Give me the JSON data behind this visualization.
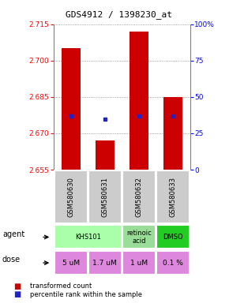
{
  "title": "GDS4912 / 1398230_at",
  "samples": [
    "GSM580630",
    "GSM580631",
    "GSM580632",
    "GSM580633"
  ],
  "bar_values": [
    2.705,
    2.667,
    2.712,
    2.685
  ],
  "bar_base": 2.655,
  "percentile_values": [
    37,
    35,
    37,
    37
  ],
  "ylim": [
    2.655,
    2.715
  ],
  "yticks": [
    2.655,
    2.67,
    2.685,
    2.7,
    2.715
  ],
  "y2ticks": [
    0,
    25,
    50,
    75,
    100
  ],
  "y2ticklabels": [
    "0",
    "25",
    "50",
    "75",
    "100%"
  ],
  "bar_color": "#cc0000",
  "dot_color": "#2222cc",
  "agent_info": [
    [
      0,
      1,
      "KHS101",
      "#aaffaa"
    ],
    [
      2,
      2,
      "retinoic\nacid",
      "#99dd99"
    ],
    [
      3,
      3,
      "DMSO",
      "#22cc22"
    ]
  ],
  "dose_labels": [
    "5 uM",
    "1.7 uM",
    "1 uM",
    "0.1 %"
  ],
  "dose_color": "#dd88dd",
  "sample_bg": "#cccccc",
  "legend_bar_color": "#cc0000",
  "legend_dot_color": "#2222cc"
}
